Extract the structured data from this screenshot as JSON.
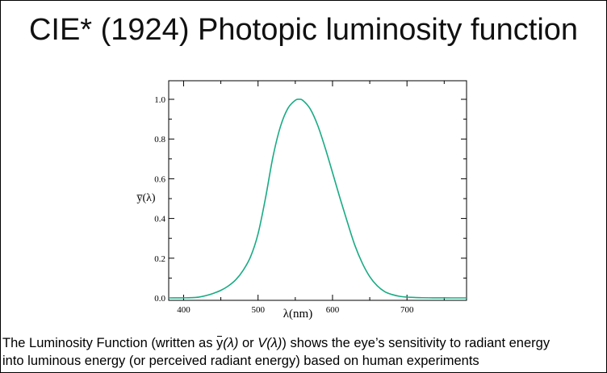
{
  "slide": {
    "title": "CIE* (1924) Photopic luminosity function",
    "caption": {
      "line1_pre": "The Luminosity Function (written as ",
      "ybar_symbol": "y",
      "ybar_arg": "(λ)",
      "or_text": " or ",
      "v_symbol": "V",
      "v_arg": "(λ)",
      "line1_post": ") shows the eye’s sensitivity to radiant energy",
      "line2": "into luminous energy (or perceived radiant energy) based on human experiments"
    }
  },
  "chart_data": {
    "type": "line",
    "ylabel": "y̅(λ)",
    "xlabel": "λ(nm)",
    "xlim": [
      380,
      780
    ],
    "ylim": [
      0,
      1.0
    ],
    "xticks": [
      400,
      500,
      600,
      700
    ],
    "yticks": [
      "0.0",
      "0.2",
      "0.4",
      "0.6",
      "0.8",
      "1.0"
    ],
    "line_color": "#1aab84",
    "grid": false,
    "series": [
      {
        "x": [
          380,
          390,
          400,
          410,
          420,
          430,
          440,
          450,
          460,
          470,
          480,
          490,
          500,
          510,
          520,
          530,
          540,
          550,
          555,
          560,
          570,
          580,
          590,
          600,
          610,
          620,
          630,
          640,
          650,
          660,
          670,
          680,
          690,
          700,
          710,
          720,
          730,
          740,
          750,
          760,
          770,
          780
        ],
        "y": [
          4e-05,
          0.00012,
          0.0004,
          0.0012,
          0.004,
          0.0116,
          0.023,
          0.038,
          0.06,
          0.091,
          0.139,
          0.208,
          0.323,
          0.503,
          0.71,
          0.862,
          0.954,
          0.995,
          1.0,
          0.995,
          0.952,
          0.87,
          0.757,
          0.631,
          0.503,
          0.381,
          0.265,
          0.175,
          0.107,
          0.061,
          0.032,
          0.017,
          0.0082,
          0.0041,
          0.0021,
          0.00105,
          0.00052,
          0.00025,
          0.00012,
          6e-05,
          3e-05,
          1.5e-05
        ]
      }
    ]
  }
}
